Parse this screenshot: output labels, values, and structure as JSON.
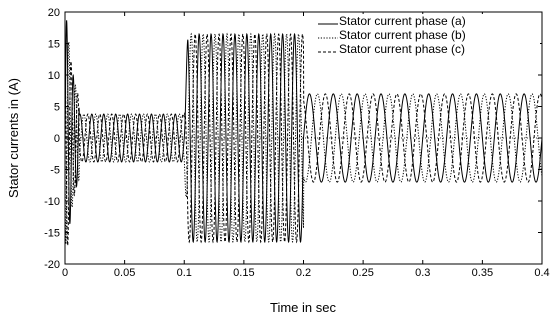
{
  "chart_data": {
    "type": "line",
    "title": "",
    "xlabel": "Time in sec",
    "ylabel": "Stator currents in (A)",
    "xlim": [
      0,
      0.4
    ],
    "ylim": [
      -20,
      20
    ],
    "xticks": [
      0,
      0.05,
      0.1,
      0.15,
      0.2,
      0.25,
      0.3,
      0.35,
      0.4
    ],
    "xtick_labels": [
      "0",
      "0.05",
      "0.1",
      "0.15",
      "0.2",
      "0.25",
      "0.3",
      "0.35",
      "0.4"
    ],
    "yticks": [
      -20,
      -15,
      -10,
      -5,
      0,
      5,
      10,
      15,
      20
    ],
    "ytick_labels": [
      "-20",
      "-15",
      "-10",
      "-5",
      "0",
      "5",
      "10",
      "15",
      "20"
    ],
    "grid": false,
    "legend_position": "top-right",
    "colors": {
      "line": "#000000",
      "background": "#ffffff"
    },
    "segments": [
      {
        "x_start": 0.0,
        "x_end": 0.012,
        "description_values": {
          "peak": 19.5,
          "trough": -19
        }
      },
      {
        "x_start": 0.012,
        "x_end": 0.1,
        "amplitude": 3.8,
        "frequency_hz": 100
      },
      {
        "x_start": 0.1,
        "x_end": 0.2,
        "amplitude": 16.5,
        "frequency_hz": 100
      },
      {
        "x_start": 0.2,
        "x_end": 0.4,
        "amplitude": 7,
        "frequency_hz": 50
      }
    ],
    "series": [
      {
        "name": "Stator current phase (a)",
        "line_style": "solid",
        "phase_deg": 0
      },
      {
        "name": "Stator current phase (b)",
        "line_style": "dotted",
        "phase_deg": -120
      },
      {
        "name": "Stator current phase (c)",
        "line_style": "dashed",
        "phase_deg": 120
      }
    ]
  }
}
